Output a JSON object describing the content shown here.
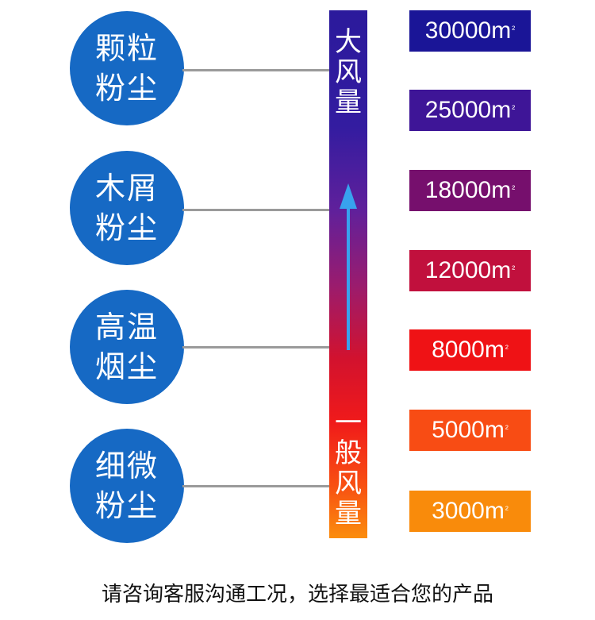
{
  "dust_types": [
    {
      "line1": "颗粒",
      "line2": "粉尘"
    },
    {
      "line1": "木屑",
      "line2": "粉尘"
    },
    {
      "line1": "高温",
      "line2": "烟尘"
    },
    {
      "line1": "细微",
      "line2": "粉尘"
    }
  ],
  "bar": {
    "top_label": [
      "大",
      "风",
      "量"
    ],
    "bottom_label": [
      "一",
      "般",
      "风",
      "量"
    ]
  },
  "airflow_boxes": [
    {
      "value": "30000m",
      "sup": "²",
      "color": "#1a1597"
    },
    {
      "value": "25000m",
      "sup": "²",
      "color": "#3e1597"
    },
    {
      "value": "18000m",
      "sup": "²",
      "color": "#760f6d"
    },
    {
      "value": "12000m",
      "sup": "²",
      "color": "#c1103d"
    },
    {
      "value": "8000m",
      "sup": "²",
      "color": "#ef1215"
    },
    {
      "value": "5000m",
      "sup": "²",
      "color": "#f84c14"
    },
    {
      "value": "3000m",
      "sup": "²",
      "color": "#f98b0b"
    }
  ],
  "footer_text": "请咨询客服沟通工况，选择最适合您的产品"
}
